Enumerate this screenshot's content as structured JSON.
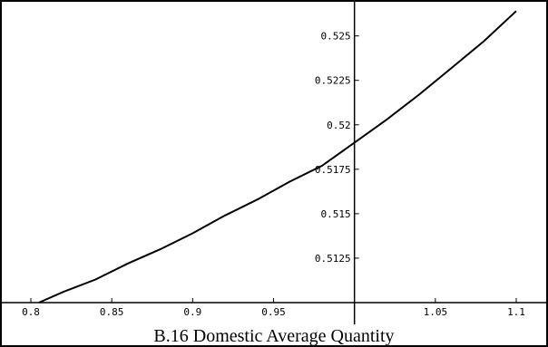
{
  "caption": "B.16   Domestic Average Quantity",
  "chart_data": {
    "type": "line",
    "title": "",
    "xlabel": "B.16   Domestic Average Quantity",
    "ylabel": "",
    "xlim": [
      0.8,
      1.1
    ],
    "ylim": [
      0.51,
      0.526
    ],
    "x_ticks": [
      0.8,
      0.85,
      0.9,
      0.95,
      1.05,
      1.1
    ],
    "x_tick_labels": [
      "0.8",
      "0.85",
      "0.9",
      "0.95",
      "1.05",
      "1.1"
    ],
    "y_ticks": [
      0.5125,
      0.515,
      0.5175,
      0.52,
      0.5225,
      0.525
    ],
    "y_tick_labels": [
      "0.5125",
      "0.515",
      "0.5175",
      "0.52",
      "0.5225",
      "0.525"
    ],
    "axis_origin": {
      "x": 1.0,
      "y": 0.51
    },
    "grid": false,
    "series": [
      {
        "x": [
          0.805,
          0.82,
          0.84,
          0.86,
          0.88,
          0.9,
          0.92,
          0.94,
          0.96,
          0.98,
          1.0,
          1.02,
          1.04,
          1.06,
          1.08,
          1.1
        ],
        "y": [
          0.51,
          0.5106,
          0.5113,
          0.5122,
          0.513,
          0.5139,
          0.5149,
          0.5158,
          0.5168,
          0.5177,
          0.519,
          0.5203,
          0.5217,
          0.5232,
          0.5247,
          0.5264
        ]
      }
    ]
  }
}
